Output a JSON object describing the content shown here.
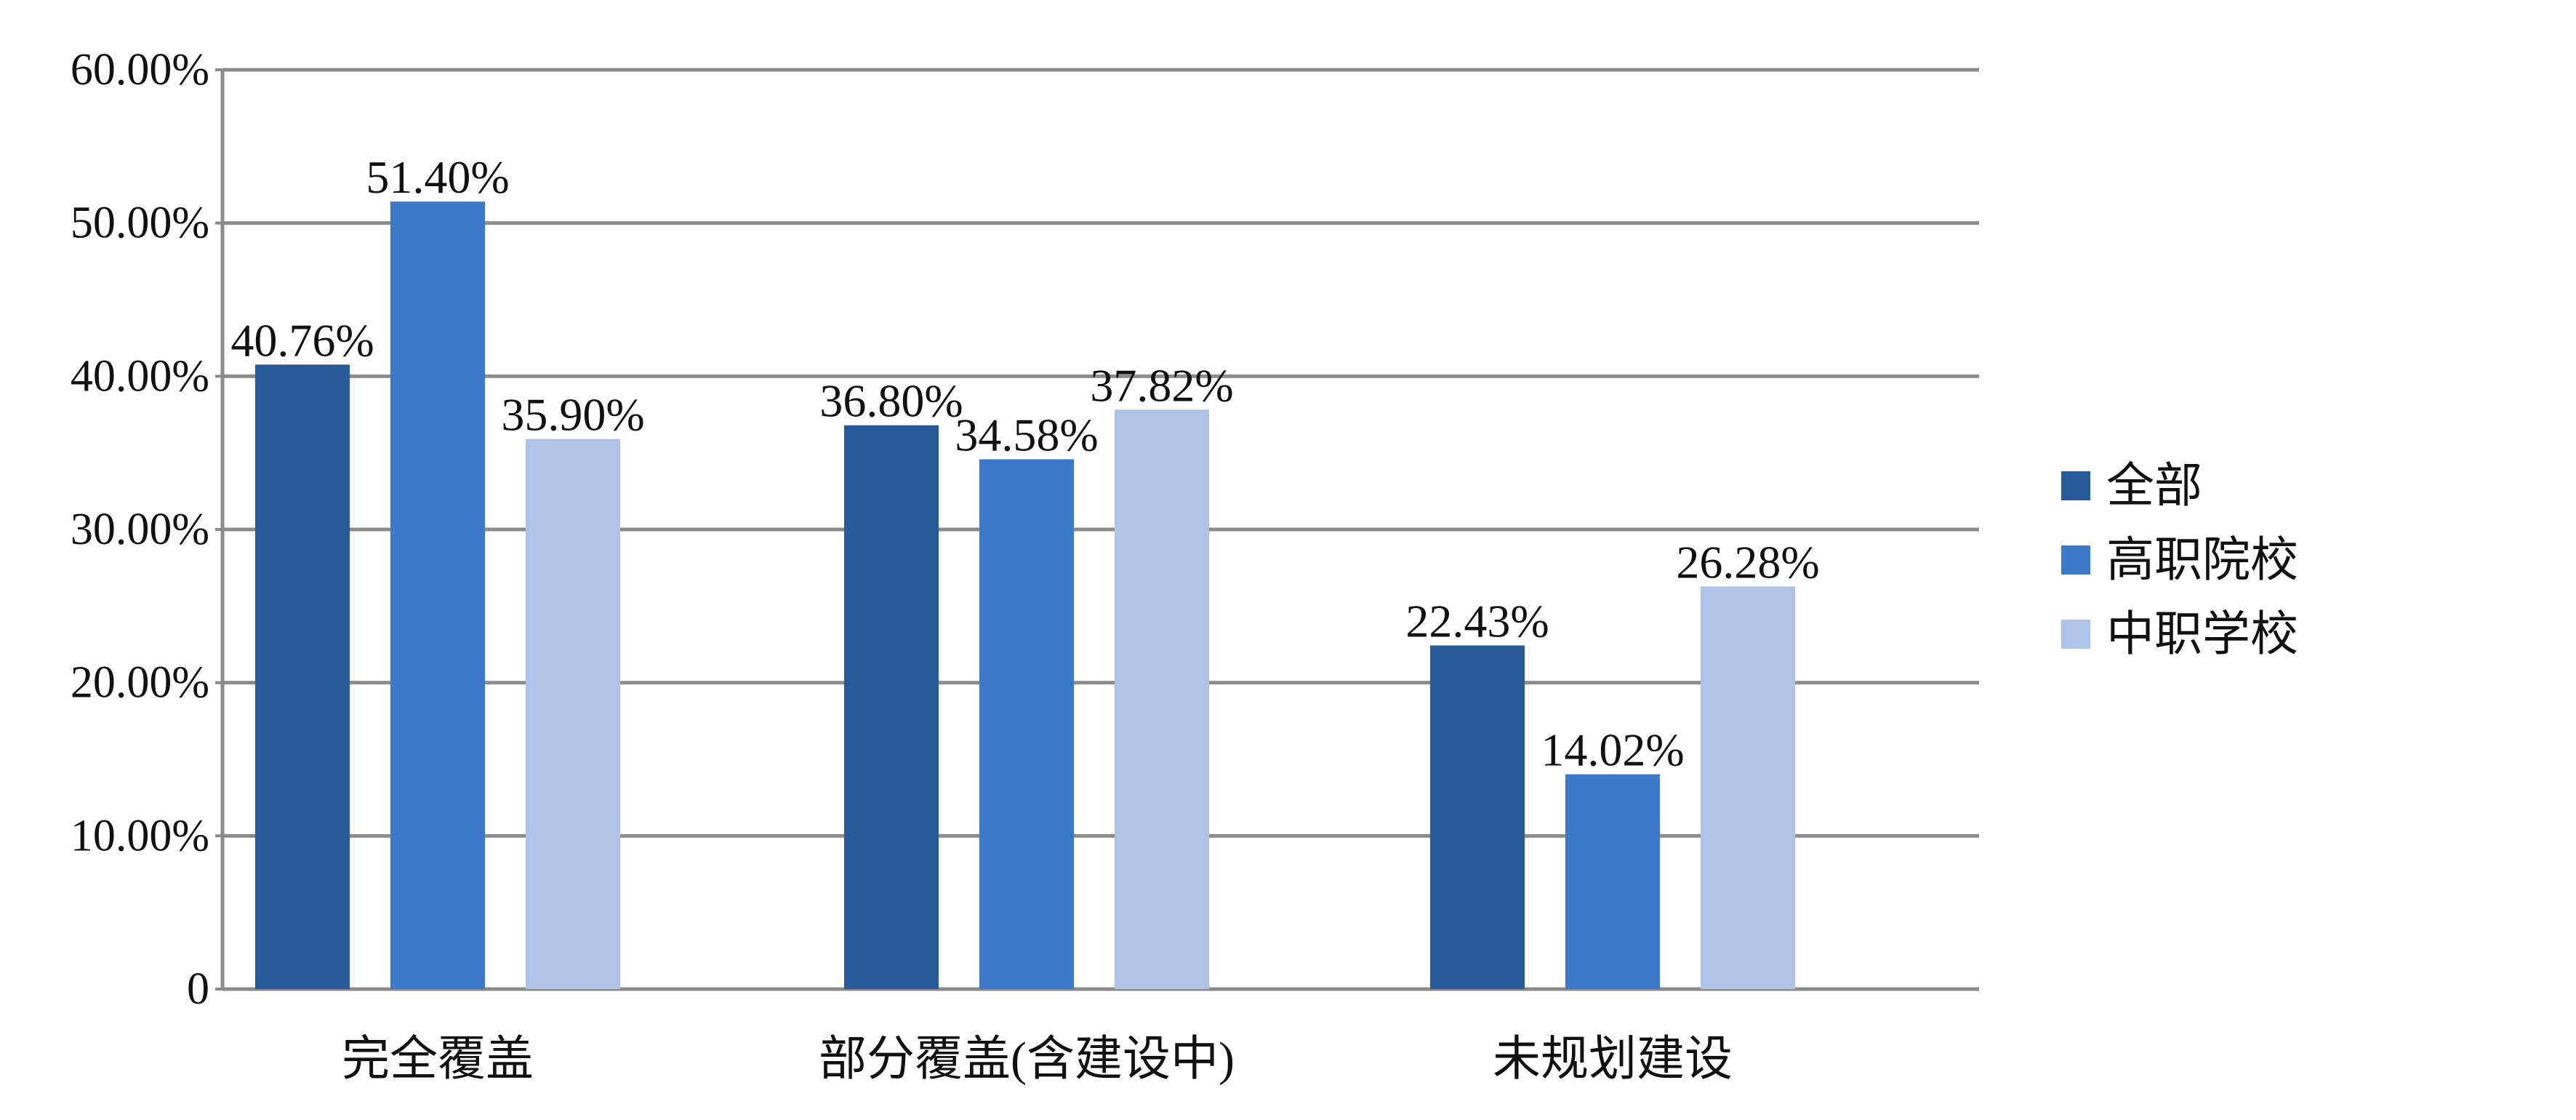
{
  "chart_data": {
    "type": "bar",
    "title": "",
    "xlabel": "",
    "ylabel": "",
    "categories": [
      "完全覆盖",
      "部分覆盖(含建设中)",
      "未规划建设"
    ],
    "series": [
      {
        "name": "全部",
        "color": "#285A9B",
        "values": [
          40.76,
          36.8,
          22.43
        ]
      },
      {
        "name": "高职院校",
        "color": "#3A7AC8",
        "values": [
          51.4,
          34.58,
          14.02
        ]
      },
      {
        "name": "中职学校",
        "color": "#AFC3E8",
        "values": [
          35.9,
          37.82,
          26.28
        ]
      }
    ],
    "data_labels": [
      [
        "40.76%",
        "36.80%",
        "22.43%"
      ],
      [
        "51.40%",
        "34.58%",
        "14.02%"
      ],
      [
        "35.90%",
        "37.82%",
        "26.28%"
      ]
    ],
    "ylim": [
      0,
      60
    ],
    "yticks": [
      0,
      10,
      20,
      30,
      40,
      50,
      60
    ],
    "ytick_labels": [
      "0",
      "10.00%",
      "20.00%",
      "30.00%",
      "40.00%",
      "50.00%",
      "60.00%"
    ],
    "grid": true,
    "legend": "right",
    "colors": {
      "gridline": "#8C8C8C",
      "axis": "#8C8C8C"
    }
  }
}
